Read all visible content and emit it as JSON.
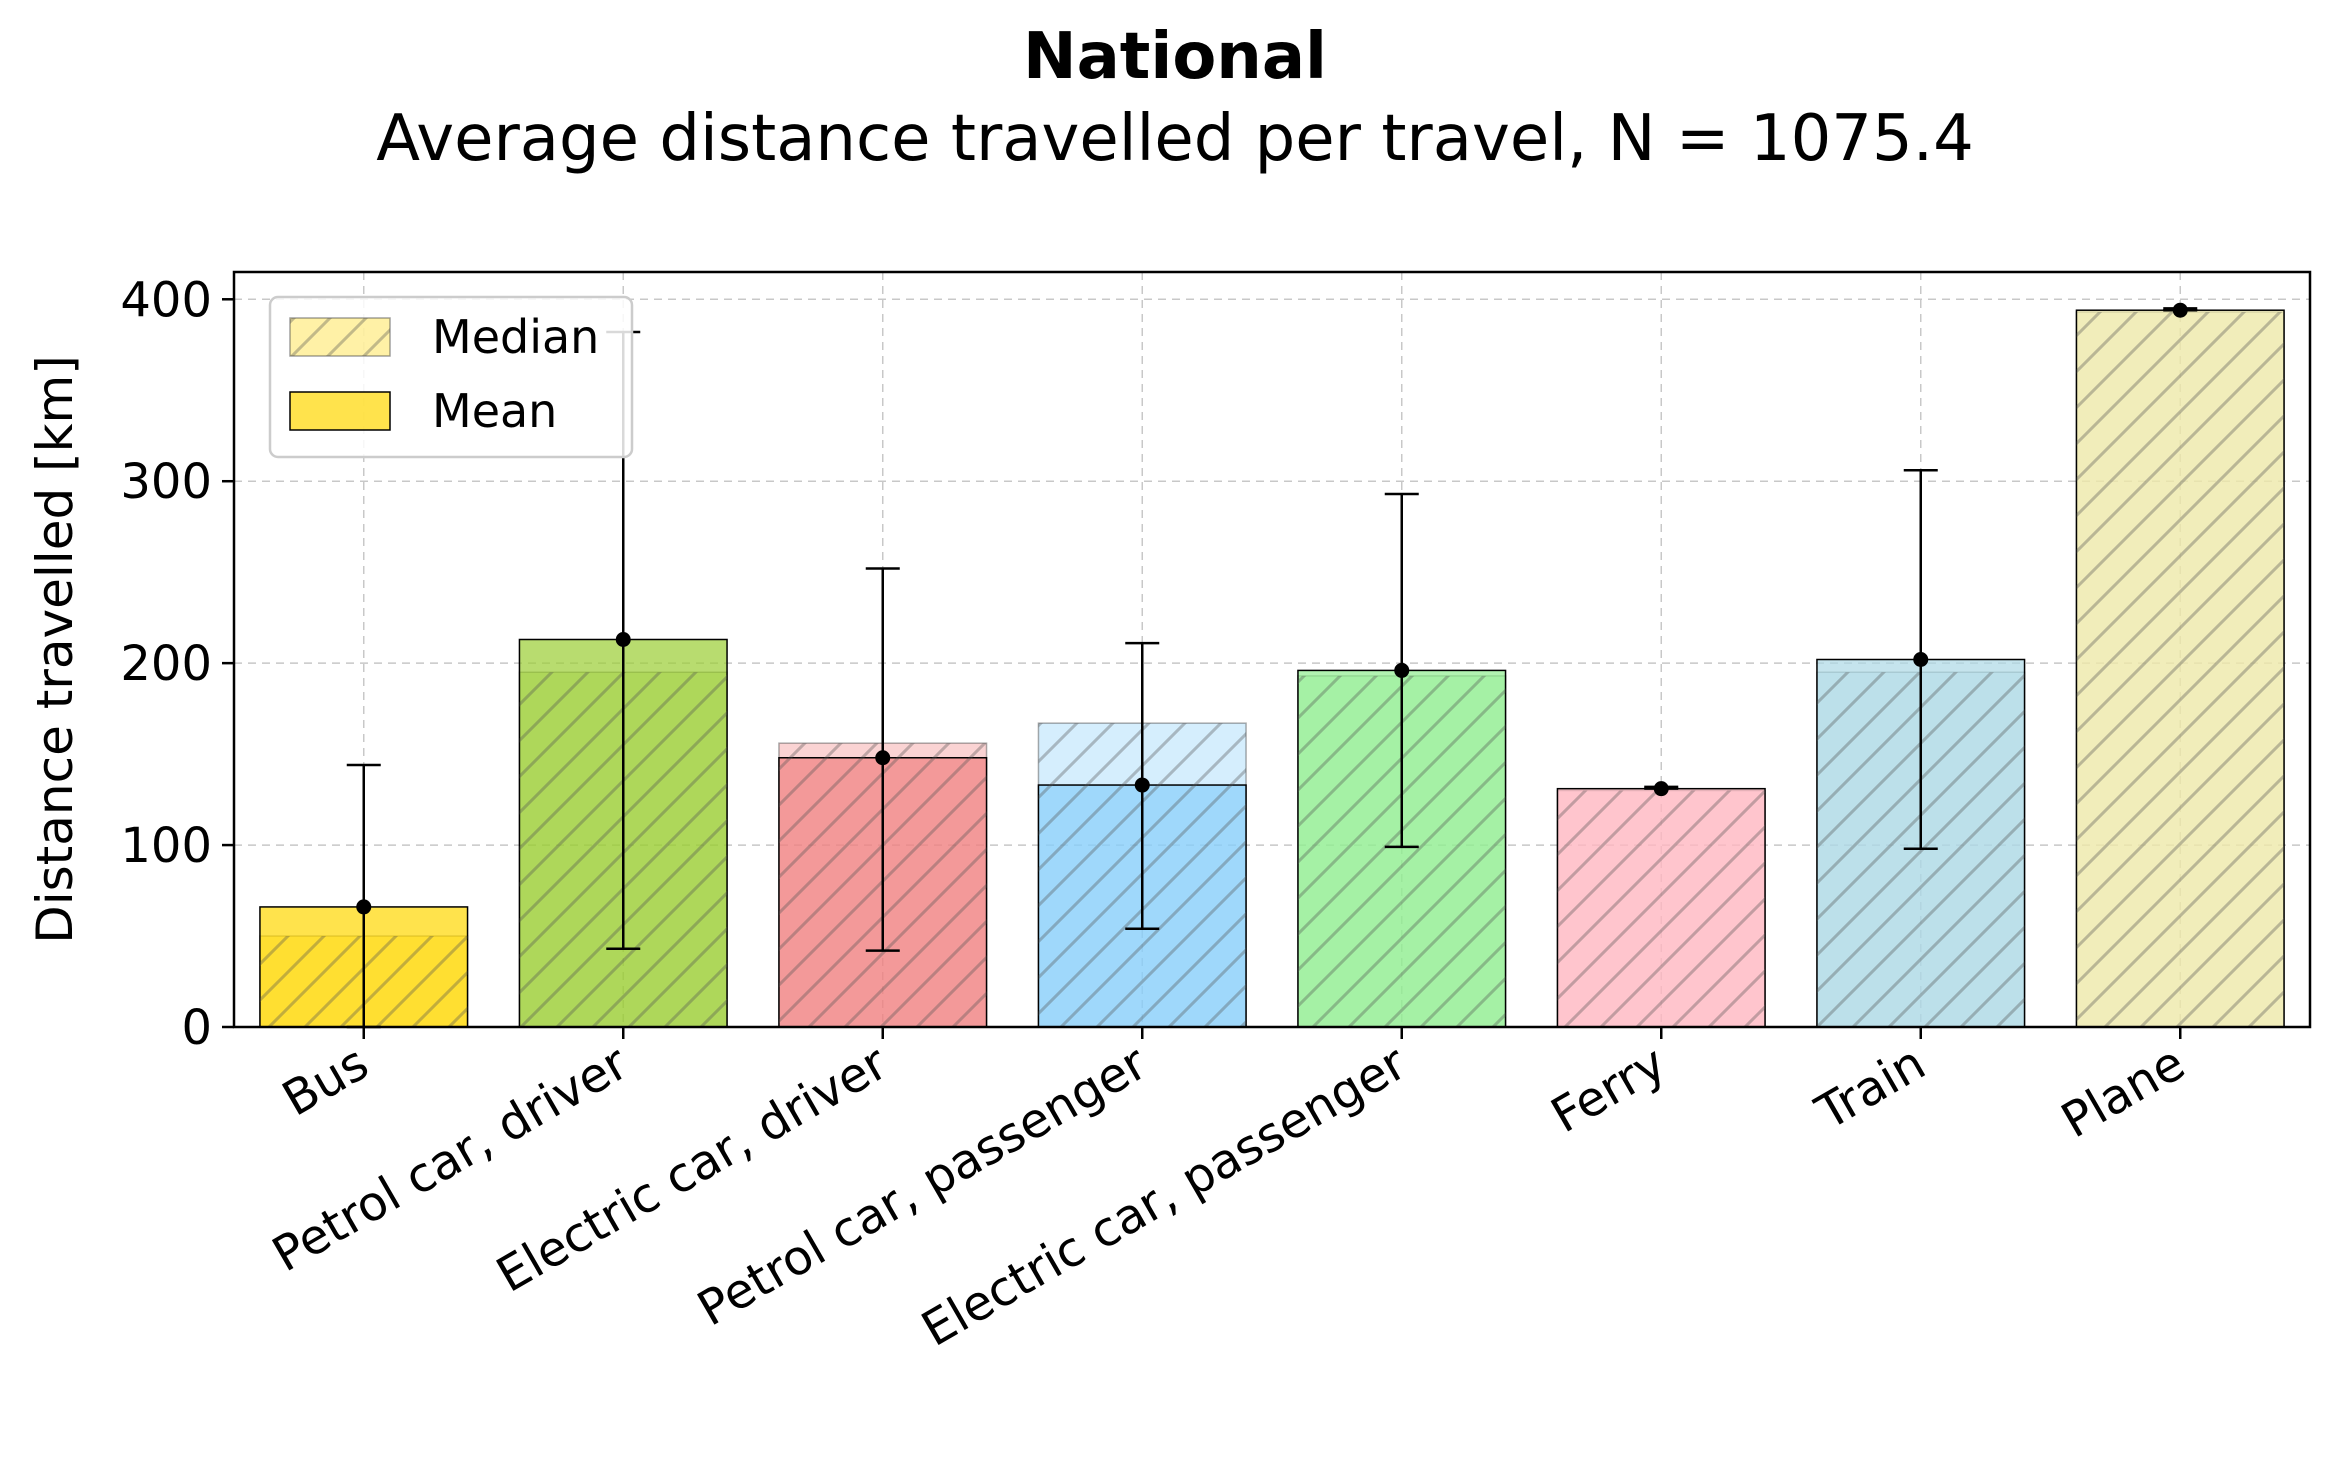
{
  "chart_data": {
    "type": "bar",
    "title": "National",
    "subtitle": "Average distance travelled per travel, N = 1075.4",
    "xlabel": "",
    "ylabel": "Distance travelled [km]",
    "ylim": [
      0,
      415
    ],
    "yticks": [
      0,
      100,
      200,
      300,
      400
    ],
    "grid": true,
    "legend_position": "top-left",
    "legend": [
      {
        "label": "Median",
        "style": "hatched"
      },
      {
        "label": "Mean",
        "style": "solid"
      }
    ],
    "categories": [
      "Bus",
      "Petrol car, driver",
      "Electric car, driver",
      "Petrol car, passenger",
      "Electric car, passenger",
      "Ferry",
      "Train",
      "Plane"
    ],
    "colors": [
      "#FFD700",
      "#9ACD32",
      "#F08080",
      "#87CEFA",
      "#90EE90",
      "#FFB6C1",
      "#ADD8E6",
      "#EEE8AA"
    ],
    "series": [
      {
        "name": "Mean",
        "values": [
          66,
          213,
          148,
          133,
          196,
          131,
          202,
          394
        ]
      },
      {
        "name": "Median",
        "values": [
          50,
          195,
          156,
          167,
          193,
          130,
          195,
          393
        ]
      }
    ],
    "error_bars": {
      "low": [
        0,
        43,
        42,
        54,
        99,
        131,
        98,
        394
      ],
      "high": [
        144,
        382,
        252,
        211,
        293,
        132,
        306,
        395
      ]
    }
  }
}
